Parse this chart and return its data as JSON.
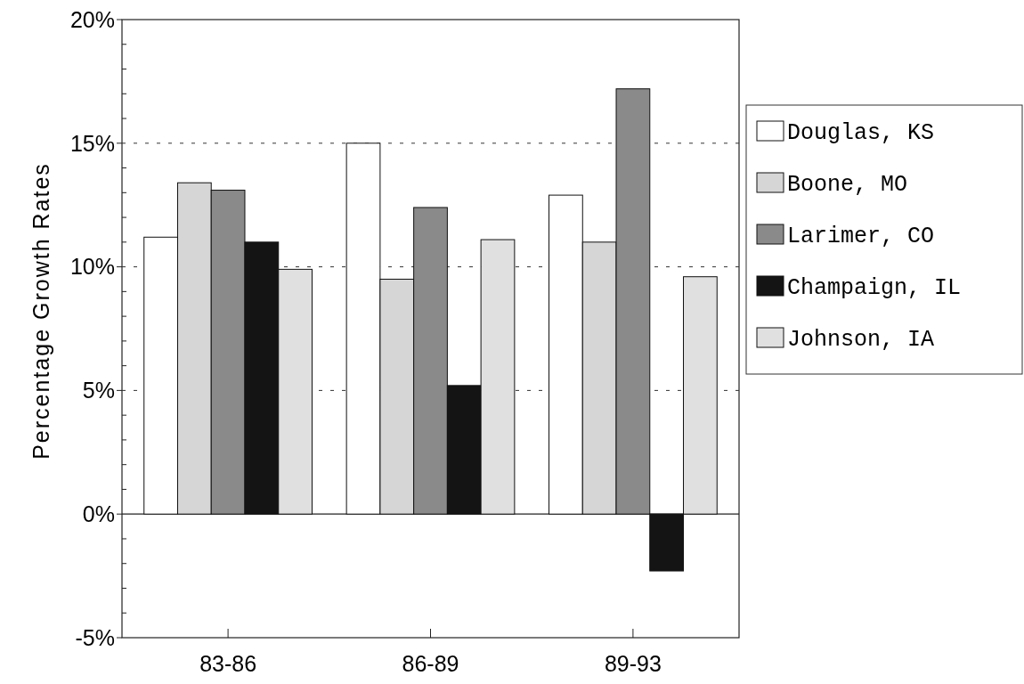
{
  "chart_data": {
    "type": "bar",
    "ylabel": "Percentage Growth Rates",
    "categories": [
      "83-86",
      "86-89",
      "89-93"
    ],
    "series": [
      {
        "name": "Douglas, KS",
        "color": "#ffffff",
        "values": [
          11.2,
          15.0,
          12.9
        ]
      },
      {
        "name": "Boone, MO",
        "color": "#d6d6d6",
        "values": [
          13.4,
          9.5,
          11.0
        ]
      },
      {
        "name": "Larimer, CO",
        "color": "#8a8a8a",
        "values": [
          13.1,
          12.4,
          17.2
        ]
      },
      {
        "name": "Champaign, IL",
        "color": "#141414",
        "values": [
          11.0,
          5.2,
          -2.3
        ]
      },
      {
        "name": "Johnson, IA",
        "color": "#e0e0e0",
        "values": [
          9.9,
          11.1,
          9.6
        ]
      }
    ],
    "ylim": [
      -5,
      20
    ],
    "yticks": [
      {
        "value": -5,
        "label": "-5%"
      },
      {
        "value": -4,
        "label": null
      },
      {
        "value": -3,
        "label": null
      },
      {
        "value": -2,
        "label": null
      },
      {
        "value": -1,
        "label": null
      },
      {
        "value": 0,
        "label": "0%"
      },
      {
        "value": 1,
        "label": null
      },
      {
        "value": 2,
        "label": null
      },
      {
        "value": 3,
        "label": null
      },
      {
        "value": 4,
        "label": null
      },
      {
        "value": 5,
        "label": "5%"
      },
      {
        "value": 6,
        "label": null
      },
      {
        "value": 7,
        "label": null
      },
      {
        "value": 8,
        "label": null
      },
      {
        "value": 9,
        "label": null
      },
      {
        "value": 10,
        "label": "10%"
      },
      {
        "value": 11,
        "label": null
      },
      {
        "value": 12,
        "label": null
      },
      {
        "value": 13,
        "label": null
      },
      {
        "value": 14,
        "label": null
      },
      {
        "value": 15,
        "label": "15%"
      },
      {
        "value": 16,
        "label": null
      },
      {
        "value": 17,
        "label": null
      },
      {
        "value": 18,
        "label": null
      },
      {
        "value": 19,
        "label": null
      },
      {
        "value": 20,
        "label": "20%"
      }
    ],
    "ref_lines": [
      {
        "axis": "y",
        "value": 0
      }
    ],
    "grid": "y",
    "legend": "right"
  }
}
